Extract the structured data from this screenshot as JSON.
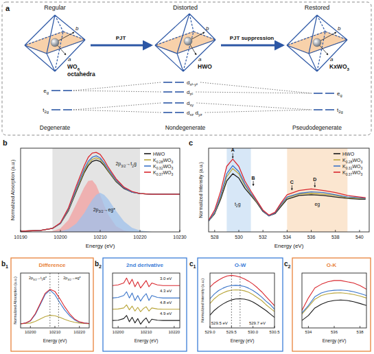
{
  "diagram": {
    "panel": "a",
    "axes": [
      "a",
      "b"
    ],
    "arrows": [
      "PJT",
      "PJT suppression"
    ],
    "stages": [
      {
        "title": "Regular",
        "compound": "WO6",
        "note": "octahedra",
        "levels": [
          "eg",
          "t2g"
        ],
        "state": "Degenerate"
      },
      {
        "title": "Distorted",
        "compound": "HWO",
        "levels": [
          "dx²-y²",
          "dz²",
          "dxy",
          "dxz dyz"
        ],
        "state": "Nondegenerate"
      },
      {
        "title": "Restored",
        "compound": "KxWO3",
        "levels": [
          "eg",
          "t2g"
        ],
        "state": "Pseudodegenerate"
      }
    ]
  },
  "chart_data": [
    {
      "type": "line",
      "panel": "b",
      "x_label": "Energy (eV)",
      "y_label": "Normalized Absorption (a.u.)",
      "xlim": [
        10190,
        10230
      ],
      "xticks": [
        10190,
        10200,
        10210,
        10220,
        10230
      ],
      "ylim": [
        0,
        1.2
      ],
      "tick_labels": "x",
      "grid": false,
      "legend": "upper right",
      "highlights": [
        {
          "x": [
            10198,
            10220
          ],
          "color": "#bbbbbb"
        }
      ],
      "x": [
        10190,
        10195,
        10198,
        10200,
        10202,
        10204,
        10206,
        10207,
        10208,
        10209,
        10210,
        10211,
        10212,
        10214,
        10216,
        10218,
        10220,
        10223,
        10226,
        10230
      ],
      "series": [
        {
          "type": "area",
          "color": "#f3a0a0",
          "values": [
            0,
            0,
            0.01,
            0.05,
            0.17,
            0.4,
            0.64,
            0.73,
            0.74,
            0.67,
            0.53,
            0.38,
            0.25,
            0.08,
            0.02,
            0,
            0,
            0,
            0,
            0
          ]
        },
        {
          "type": "area",
          "color": "#9fc2ec",
          "values": [
            0,
            0,
            0,
            0.01,
            0.04,
            0.12,
            0.27,
            0.37,
            0.46,
            0.53,
            0.56,
            0.53,
            0.47,
            0.3,
            0.15,
            0.06,
            0.02,
            0,
            0,
            0
          ]
        },
        {
          "name": "HWO",
          "color": "#1a1a1a",
          "values": [
            0.01,
            0.02,
            0.05,
            0.12,
            0.3,
            0.58,
            0.85,
            0.95,
            1.01,
            1.03,
            1.01,
            0.95,
            0.87,
            0.72,
            0.62,
            0.57,
            0.55,
            0.54,
            0.54,
            0.54
          ]
        },
        {
          "name": "K0.28WO3",
          "color": "#b9a53a",
          "values": [
            0.01,
            0.02,
            0.05,
            0.12,
            0.31,
            0.6,
            0.87,
            0.98,
            1.04,
            1.06,
            1.04,
            0.97,
            0.88,
            0.73,
            0.63,
            0.57,
            0.55,
            0.54,
            0.54,
            0.54
          ]
        },
        {
          "name": "K0.32WO3",
          "color": "#3a74c9",
          "values": [
            0.01,
            0.02,
            0.05,
            0.12,
            0.32,
            0.62,
            0.9,
            1.01,
            1.07,
            1.09,
            1.06,
            0.99,
            0.9,
            0.74,
            0.63,
            0.57,
            0.55,
            0.54,
            0.54,
            0.54
          ]
        },
        {
          "name": "K0.37WO3",
          "color": "#d9272e",
          "values": [
            0.01,
            0.02,
            0.05,
            0.13,
            0.34,
            0.66,
            0.95,
            1.07,
            1.13,
            1.14,
            1.11,
            1.03,
            0.93,
            0.76,
            0.64,
            0.58,
            0.55,
            0.54,
            0.54,
            0.54
          ]
        }
      ],
      "annotations": [
        {
          "text": "2p3/2→t2g",
          "x": 10216.5,
          "y": 0.95
        },
        {
          "text": "2p3/2→eg*",
          "x": 10211,
          "y": 0.3
        }
      ]
    },
    {
      "type": "line",
      "panel": "b1",
      "title": "Difference",
      "x_label": "Energy (eV)",
      "y_label": "Normalized Absorption (a.u.)",
      "xlim": [
        10196,
        10224
      ],
      "xticks": [
        10200,
        10210,
        10220
      ],
      "ylim": [
        -0.1,
        1.25
      ],
      "tick_labels": "x",
      "x": [
        10196,
        10198,
        10200,
        10202,
        10204,
        10206,
        10208,
        10210,
        10212,
        10214,
        10216,
        10218,
        10220,
        10222,
        10224
      ],
      "series": [
        {
          "color": "#b9a53a",
          "values": [
            0,
            0.01,
            0.02,
            0.06,
            0.12,
            0.18,
            0.21,
            0.2,
            0.16,
            0.11,
            0.07,
            0.04,
            0.02,
            0.01,
            0
          ]
        },
        {
          "color": "#3a74c9",
          "values": [
            0,
            0.02,
            0.07,
            0.23,
            0.47,
            0.72,
            0.83,
            0.72,
            0.52,
            0.34,
            0.2,
            0.1,
            0.04,
            0.02,
            0.01
          ]
        },
        {
          "color": "#d9272e",
          "values": [
            0,
            0.02,
            0.08,
            0.25,
            0.5,
            0.75,
            0.85,
            0.8,
            0.62,
            0.42,
            0.25,
            0.12,
            0.05,
            0.02,
            0.01
          ]
        }
      ],
      "vlines": [
        10208,
        10211.5
      ],
      "annotations": [
        {
          "text": "2p3/2→t2g*",
          "x": 10203,
          "y": 1.1
        },
        {
          "text": "2p3/2→eg*",
          "x": 10217,
          "y": 1.1
        }
      ]
    },
    {
      "type": "line",
      "panel": "b2",
      "title": "2nd derivative",
      "x_label": "Energy (eV)",
      "xlim": [
        10198,
        10222
      ],
      "xticks": [
        10200,
        10210,
        10220
      ],
      "ylim": [
        -0.4,
        4.0
      ],
      "tick_labels": "x",
      "x": [
        10198,
        10200,
        10202,
        10203,
        10204,
        10205,
        10206,
        10207,
        10208,
        10209,
        10210,
        10211,
        10212,
        10214,
        10216,
        10218,
        10220,
        10222
      ],
      "series": [
        {
          "color": "#1a1a1a",
          "values": [
            0.2,
            0.22,
            0.35,
            0.6,
            0.1,
            0.45,
            0.0,
            0.35,
            -0.1,
            0.2,
            0.4,
            0.0,
            0.3,
            0.22,
            0.2,
            0.2,
            0.2,
            0.2
          ]
        },
        {
          "color": "#b9a53a",
          "values": [
            1.1,
            1.12,
            1.2,
            1.45,
            1.05,
            1.35,
            0.95,
            1.25,
            0.9,
            1.15,
            1.3,
            0.95,
            1.2,
            1.12,
            1.1,
            1.1,
            1.1,
            1.1
          ]
        },
        {
          "color": "#3a74c9",
          "values": [
            2.0,
            2.05,
            2.2,
            2.5,
            2.0,
            2.4,
            1.8,
            2.2,
            1.75,
            2.1,
            2.35,
            1.8,
            2.2,
            2.05,
            2.0,
            2.0,
            2.0,
            2.0
          ]
        },
        {
          "color": "#d9272e",
          "values": [
            3.0,
            3.05,
            3.2,
            3.6,
            3.1,
            3.5,
            2.9,
            3.3,
            2.8,
            3.1,
            3.4,
            2.9,
            3.2,
            3.05,
            3.0,
            3.0,
            3.0,
            3.0
          ]
        }
      ],
      "annotations": [
        {
          "text": "3.0 eV",
          "x": 10217,
          "y": 3.45
        },
        {
          "text": "4.3 eV",
          "x": 10217,
          "y": 2.45
        },
        {
          "text": "4.8 eV",
          "x": 10217,
          "y": 1.55
        },
        {
          "text": "4.9 eV",
          "x": 10217,
          "y": 0.65
        }
      ]
    },
    {
      "type": "line",
      "panel": "c",
      "x_label": "Energy (eV)",
      "y_label": "Normalized Intensity (a.u.)",
      "xlim": [
        527.5,
        540.8
      ],
      "xticks": [
        528,
        530,
        532,
        534,
        536,
        538,
        540
      ],
      "ylim": [
        0,
        1.15
      ],
      "tick_labels": "x",
      "grid": false,
      "legend": "upper right",
      "highlights": [
        {
          "x": [
            529,
            531
          ],
          "color": "#9cc3ec"
        },
        {
          "x": [
            534,
            539
          ],
          "color": "#f6c08a"
        }
      ],
      "x": [
        527.5,
        528,
        528.5,
        529,
        529.5,
        530,
        530.5,
        531,
        531.5,
        532,
        532.5,
        533,
        533.5,
        534,
        535,
        536,
        537,
        538,
        539,
        540,
        540.5
      ],
      "series": [
        {
          "name": "HWO",
          "color": "#1a1a1a",
          "values": [
            0.15,
            0.25,
            0.45,
            0.7,
            0.8,
            0.74,
            0.6,
            0.5,
            0.4,
            0.28,
            0.22,
            0.25,
            0.35,
            0.45,
            0.5,
            0.51,
            0.5,
            0.48,
            0.46,
            0.45,
            0.45
          ]
        },
        {
          "name": "K0.28WO3",
          "color": "#b9a53a",
          "values": [
            0.15,
            0.26,
            0.48,
            0.76,
            0.87,
            0.8,
            0.64,
            0.52,
            0.41,
            0.29,
            0.22,
            0.26,
            0.37,
            0.47,
            0.52,
            0.53,
            0.52,
            0.5,
            0.47,
            0.46,
            0.46
          ]
        },
        {
          "name": "K0.32WO3",
          "color": "#3a74c9",
          "values": [
            0.15,
            0.27,
            0.5,
            0.8,
            0.91,
            0.83,
            0.66,
            0.53,
            0.42,
            0.29,
            0.22,
            0.26,
            0.38,
            0.48,
            0.53,
            0.55,
            0.54,
            0.51,
            0.48,
            0.47,
            0.46
          ]
        },
        {
          "name": "K0.37WO3",
          "color": "#d9272e",
          "values": [
            0.16,
            0.3,
            0.56,
            0.9,
            1.0,
            0.9,
            0.7,
            0.56,
            0.43,
            0.3,
            0.23,
            0.27,
            0.4,
            0.51,
            0.57,
            0.59,
            0.57,
            0.54,
            0.5,
            0.48,
            0.47
          ]
        }
      ],
      "annotations": [
        {
          "text": "A",
          "x": 529.5,
          "y": 1.1,
          "arrow": true
        },
        {
          "text": "B",
          "x": 531.2,
          "y": 0.72,
          "arrow": true
        },
        {
          "text": "C",
          "x": 534.4,
          "y": 0.66,
          "arrow": true
        },
        {
          "text": "D",
          "x": 536.3,
          "y": 0.7,
          "arrow": true
        },
        {
          "text": "t2g",
          "x": 529.9,
          "y": 0.36
        },
        {
          "text": "eg",
          "x": 536.5,
          "y": 0.36
        }
      ]
    },
    {
      "type": "line",
      "panel": "c1",
      "title": "O-W",
      "x_label": "Energy (eV)",
      "y_label": "Normalized Intensity (a.u.)",
      "xlim": [
        529.0,
        530.5
      ],
      "xticks": [
        {
          "value": 529,
          "label": "529.0"
        },
        529.5,
        {
          "value": 530,
          "label": "530.0"
        },
        530.5
      ],
      "ylim": [
        0.55,
        1.02
      ],
      "tick_labels": "x",
      "x": [
        529.0,
        529.1,
        529.2,
        529.3,
        529.4,
        529.5,
        529.6,
        529.7,
        529.8,
        529.9,
        530.0,
        530.1,
        530.2,
        530.3,
        530.4,
        530.5
      ],
      "series": [
        {
          "color": "#1a1a1a",
          "values": [
            0.66,
            0.7,
            0.73,
            0.755,
            0.775,
            0.79,
            0.798,
            0.8,
            0.797,
            0.788,
            0.772,
            0.75,
            0.725,
            0.7,
            0.67,
            0.64
          ]
        },
        {
          "color": "#b9a53a",
          "values": [
            0.76,
            0.8,
            0.83,
            0.85,
            0.865,
            0.873,
            0.876,
            0.875,
            0.868,
            0.855,
            0.835,
            0.81,
            0.785,
            0.75,
            0.72,
            0.69
          ]
        },
        {
          "color": "#3a74c9",
          "values": [
            0.8,
            0.84,
            0.87,
            0.89,
            0.905,
            0.913,
            0.915,
            0.912,
            0.905,
            0.89,
            0.87,
            0.845,
            0.815,
            0.78,
            0.75,
            0.71
          ]
        },
        {
          "color": "#d9272e",
          "values": [
            0.9,
            0.935,
            0.96,
            0.98,
            0.995,
            1.0,
            0.995,
            0.985,
            0.97,
            0.95,
            0.925,
            0.895,
            0.86,
            0.82,
            0.78,
            0.74
          ]
        }
      ],
      "vlines": [
        529.5,
        529.7
      ],
      "annotations": [
        {
          "text": "529.5 eV",
          "x": 529.22,
          "y": 0.58
        },
        {
          "text": "529.7 eV",
          "x": 530.1,
          "y": 0.58
        }
      ]
    },
    {
      "type": "line",
      "panel": "c2",
      "title": "O-K",
      "x_label": "Energy (eV)",
      "xlim": [
        533.5,
        538.5
      ],
      "xticks": [
        534,
        536,
        538
      ],
      "ylim": [
        0.4,
        0.62
      ],
      "tick_labels": "x",
      "x": [
        533.5,
        534,
        534.5,
        535,
        535.5,
        536,
        536.5,
        537,
        537.5,
        538,
        538.5
      ],
      "series": [
        {
          "color": "#1a1a1a",
          "values": [
            0.43,
            0.45,
            0.48,
            0.495,
            0.505,
            0.51,
            0.512,
            0.51,
            0.505,
            0.498,
            0.49
          ]
        },
        {
          "color": "#b9a53a",
          "values": [
            0.455,
            0.485,
            0.515,
            0.53,
            0.537,
            0.54,
            0.541,
            0.538,
            0.534,
            0.528,
            0.52
          ]
        },
        {
          "color": "#3a74c9",
          "values": [
            0.46,
            0.49,
            0.525,
            0.54,
            0.548,
            0.551,
            0.552,
            0.55,
            0.545,
            0.538,
            0.53
          ]
        },
        {
          "color": "#d9272e",
          "values": [
            0.47,
            0.52,
            0.56,
            0.575,
            0.585,
            0.59,
            0.59,
            0.585,
            0.58,
            0.57,
            0.555
          ]
        }
      ]
    }
  ]
}
